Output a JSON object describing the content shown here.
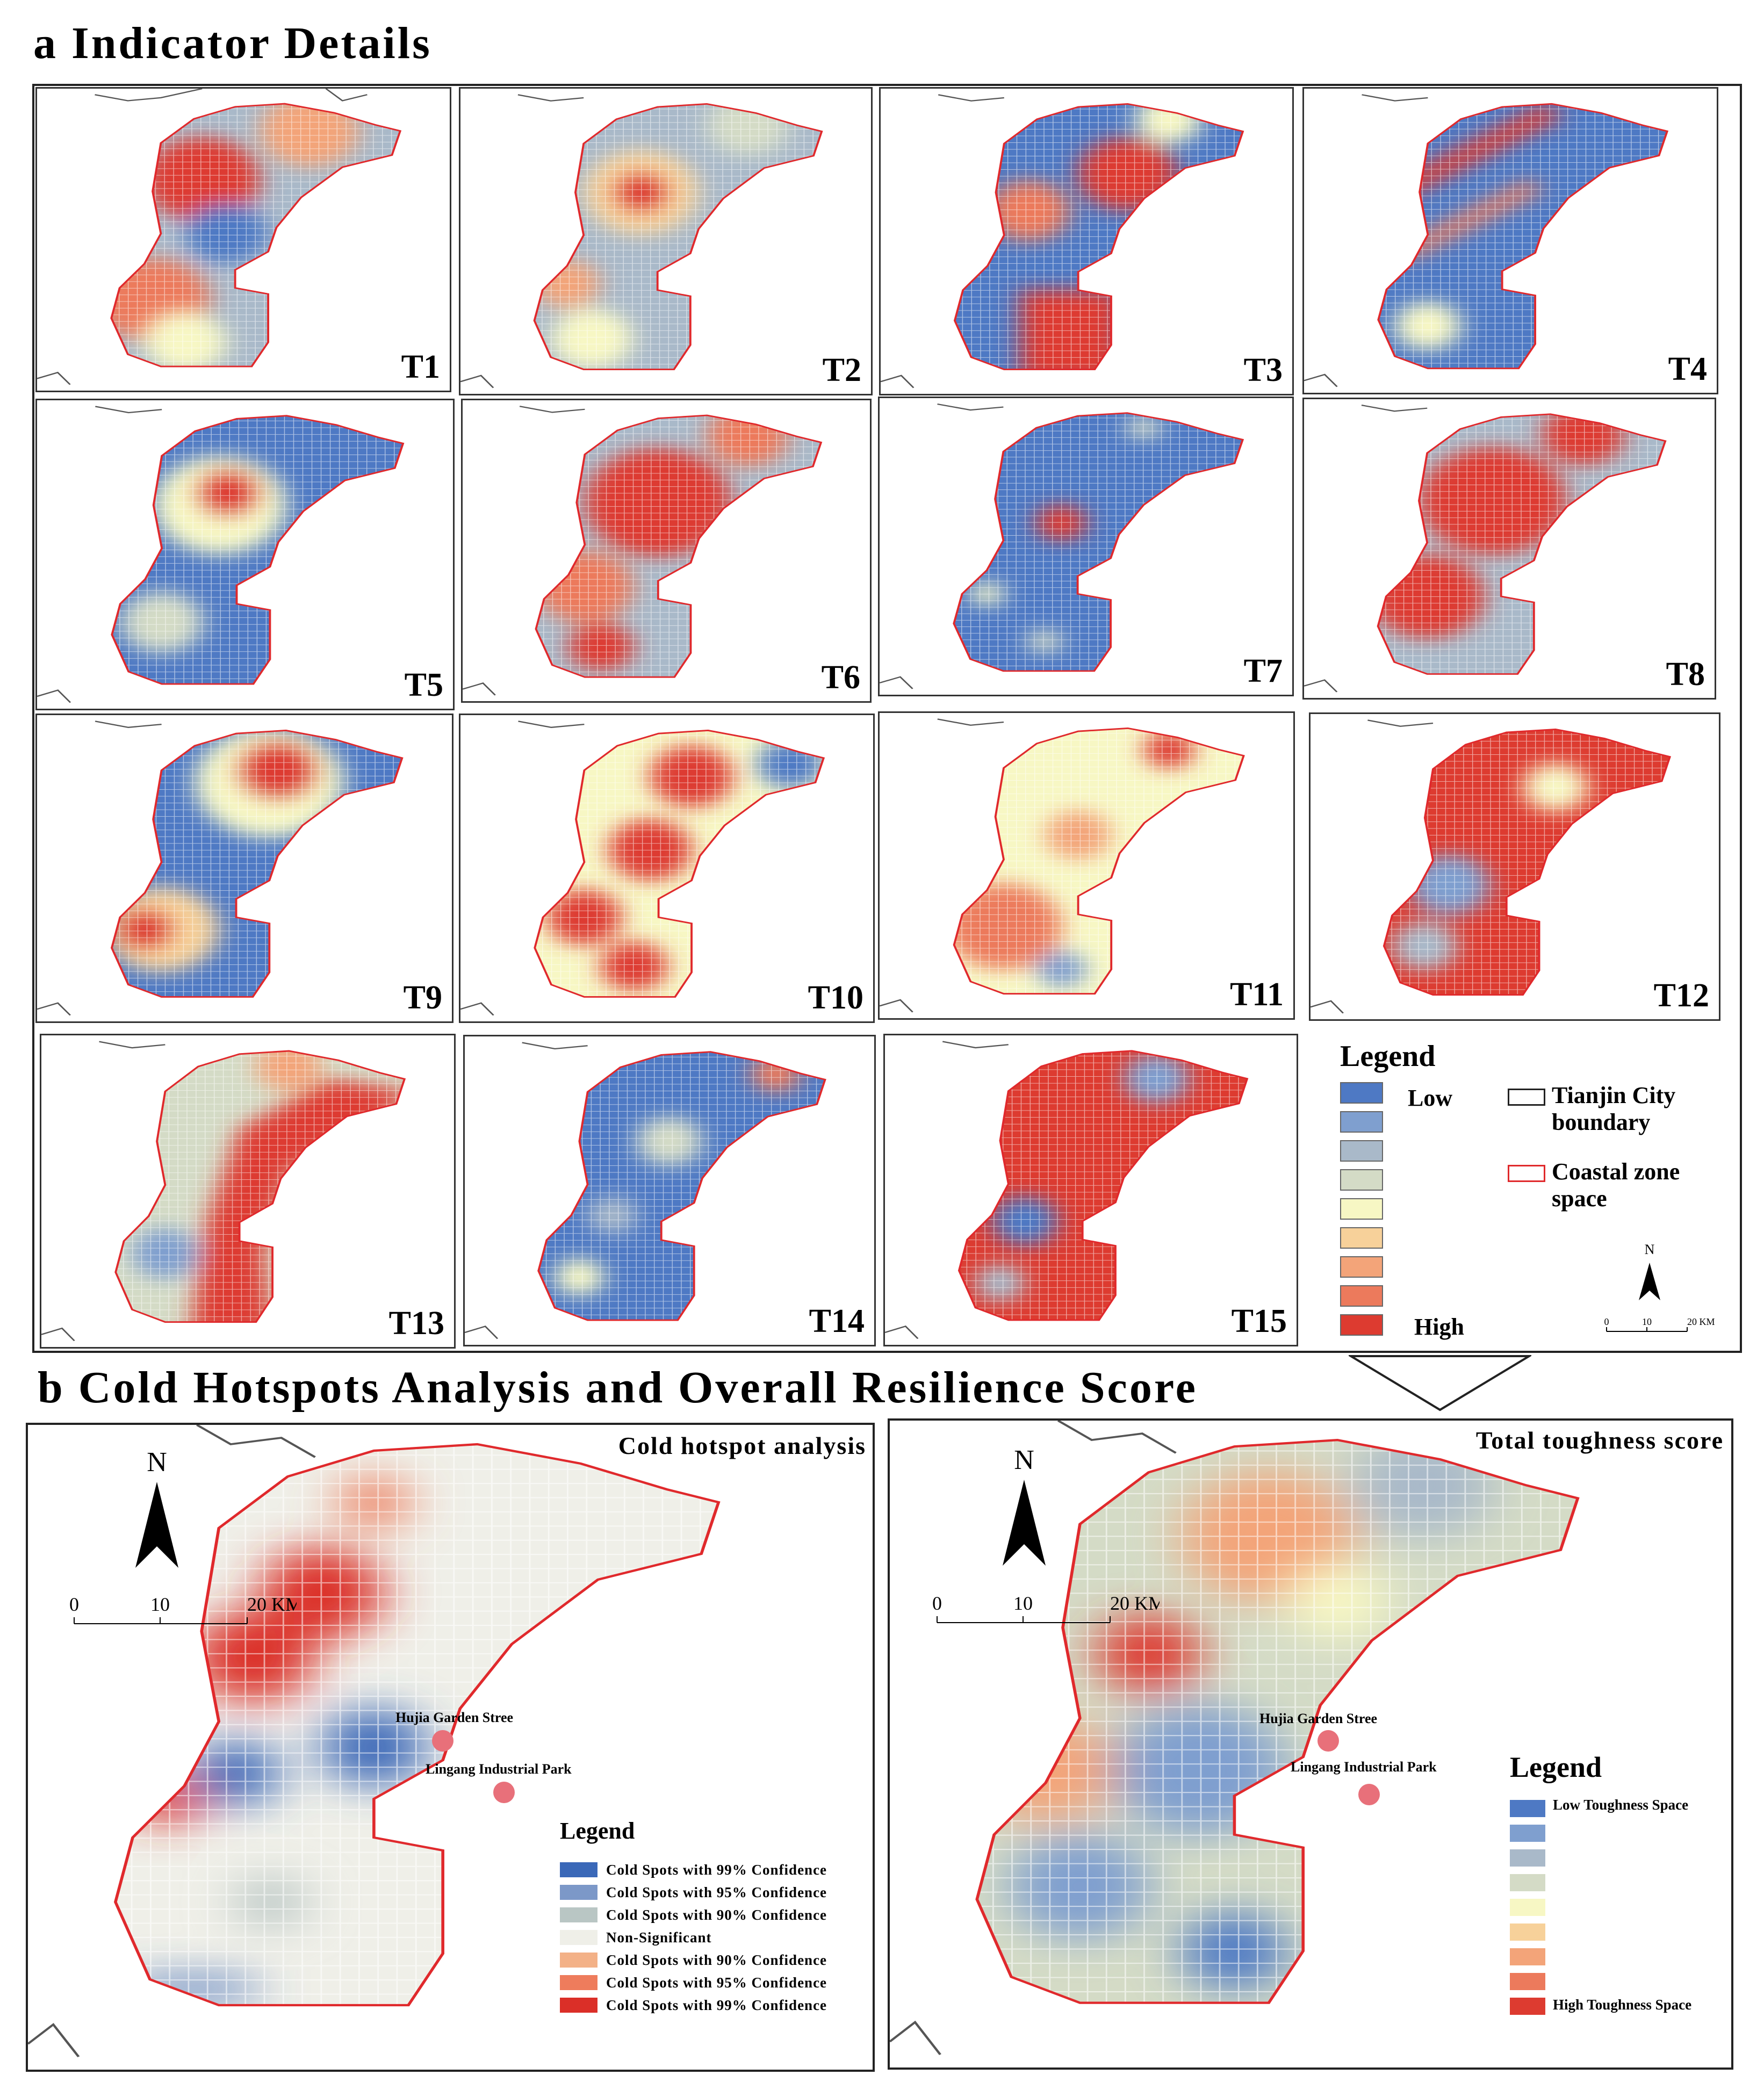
{
  "section_a": {
    "title": "a Indicator Details",
    "tiles": [
      "T1",
      "T2",
      "T3",
      "T4",
      "T5",
      "T6",
      "T7",
      "T8",
      "T9",
      "T10",
      "T11",
      "T12",
      "T13",
      "T14",
      "T15"
    ],
    "legend": {
      "title": "Legend",
      "low": "Low",
      "high": "High",
      "ramp": [
        "#4e79c4",
        "#7f9fcf",
        "#a9b9c9",
        "#d4dbc6",
        "#f7f7c4",
        "#f7d19a",
        "#f3a479",
        "#ec7a5c",
        "#dd3b30"
      ],
      "boundary_label": "Tianjin City boundary",
      "coastal_label": "Coastal zone space",
      "north": "N",
      "scale": [
        "0",
        "10",
        "20 KM"
      ]
    }
  },
  "section_b": {
    "title": "b Cold Hotspots Analysis and Overall Resilience Score",
    "left_map": {
      "title": "Cold hotspot analysis",
      "north": "N",
      "scale": [
        "0",
        "10",
        "20 KM"
      ],
      "poi": [
        "Hujia Garden Stree",
        "Lingang Industrial Park"
      ],
      "legend_title": "Legend",
      "legend": [
        {
          "label": "Cold Spots with 99% Confidence",
          "color": "#3a68b8"
        },
        {
          "label": "Cold Spots with 95% Confidence",
          "color": "#7c98c8"
        },
        {
          "label": "Cold Spots with 90% Confidence",
          "color": "#b9c6c4"
        },
        {
          "label": "Non-Significant",
          "color": "#efefe8"
        },
        {
          "label": "Cold Spots with 90% Confidence",
          "color": "#f3b187"
        },
        {
          "label": "Cold Spots with 95% Confidence",
          "color": "#ee7c5c"
        },
        {
          "label": "Cold Spots with 99% Confidence",
          "color": "#db2f28"
        }
      ]
    },
    "right_map": {
      "title": "Total toughness score",
      "north": "N",
      "scale": [
        "0",
        "10",
        "20 KM"
      ],
      "poi": [
        "Hujia Garden Stree",
        "Lingang Industrial Park"
      ],
      "legend_title": "Legend",
      "legend_low": "Low Toughness Space",
      "legend_high": "High Toughness Space",
      "ramp": [
        "#4e79c4",
        "#7f9fcf",
        "#a9b9c9",
        "#d4dbc6",
        "#f7f7c4",
        "#f7d19a",
        "#f3a479",
        "#ec7a5c",
        "#dd3b30"
      ]
    }
  }
}
